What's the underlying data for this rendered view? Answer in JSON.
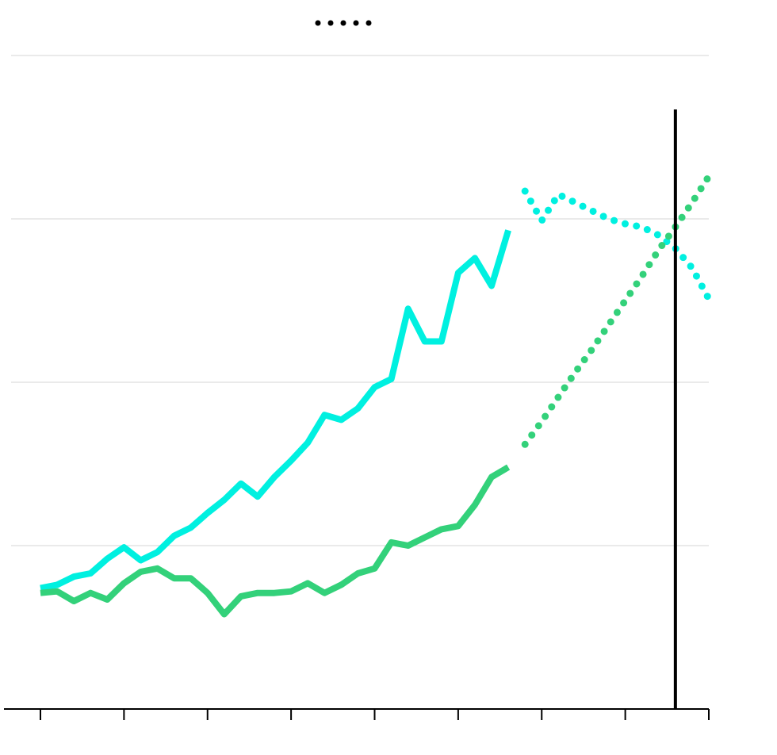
{
  "chart_data": {
    "type": "line",
    "x": [
      0,
      1,
      2,
      3,
      4,
      5,
      6,
      7,
      8,
      9,
      10,
      11,
      12,
      13,
      14,
      15,
      16,
      17,
      18,
      19,
      20,
      21,
      22,
      23,
      24,
      25,
      26,
      27,
      28,
      29,
      30,
      31,
      32,
      33,
      34,
      35,
      36,
      37,
      38,
      39,
      40
    ],
    "xlim": [
      0,
      40
    ],
    "xticks": [
      0,
      5,
      10,
      15,
      20,
      25,
      30,
      35,
      40
    ],
    "ylim": [
      0,
      4
    ],
    "yticks": [
      0,
      1,
      2,
      3,
      4
    ],
    "grid": true,
    "series": [
      {
        "color": "#00f0e0",
        "style": "solid",
        "values": [
          0.74,
          0.76,
          0.81,
          0.83,
          0.92,
          0.99,
          0.91,
          0.96,
          1.06,
          1.11,
          1.2,
          1.28,
          1.38,
          1.3,
          1.42,
          1.52,
          1.63,
          1.8,
          1.77,
          1.84,
          1.97,
          2.02,
          2.45,
          2.25,
          2.25,
          2.67,
          2.76,
          2.59,
          2.93,
          null,
          null,
          null,
          null,
          null,
          null,
          null,
          null,
          null,
          null,
          null,
          null
        ]
      },
      {
        "color": "#00f0e0",
        "style": "dotted",
        "values": [
          null,
          null,
          null,
          null,
          null,
          null,
          null,
          null,
          null,
          null,
          null,
          null,
          null,
          null,
          null,
          null,
          null,
          null,
          null,
          null,
          null,
          null,
          null,
          null,
          null,
          null,
          null,
          null,
          null,
          3.17,
          2.99,
          3.15,
          3.1,
          3.05,
          3.0,
          2.97,
          2.95,
          2.9,
          2.82,
          2.7,
          2.51
        ]
      },
      {
        "color": "#33d17a",
        "style": "solid",
        "values": [
          0.71,
          0.72,
          0.66,
          0.71,
          0.67,
          0.77,
          0.84,
          0.86,
          0.8,
          0.8,
          0.71,
          0.58,
          0.69,
          0.71,
          0.71,
          0.72,
          0.77,
          0.71,
          0.76,
          0.83,
          0.86,
          1.02,
          1.0,
          1.05,
          1.1,
          1.12,
          1.25,
          1.42,
          1.48,
          null,
          null,
          null,
          null,
          null,
          null,
          null,
          null,
          null,
          null,
          null,
          null
        ]
      },
      {
        "color": "#33d17a",
        "style": "dotted",
        "values": [
          null,
          null,
          null,
          null,
          null,
          null,
          null,
          null,
          null,
          null,
          null,
          null,
          null,
          null,
          null,
          null,
          null,
          null,
          null,
          null,
          null,
          null,
          null,
          null,
          null,
          null,
          null,
          null,
          null,
          1.62,
          1.76,
          1.91,
          2.06,
          2.2,
          2.35,
          2.5,
          2.65,
          2.81,
          2.95,
          3.1,
          3.26
        ]
      }
    ],
    "vline": {
      "x": 38,
      "top": 3.67,
      "color": "#000000"
    }
  }
}
